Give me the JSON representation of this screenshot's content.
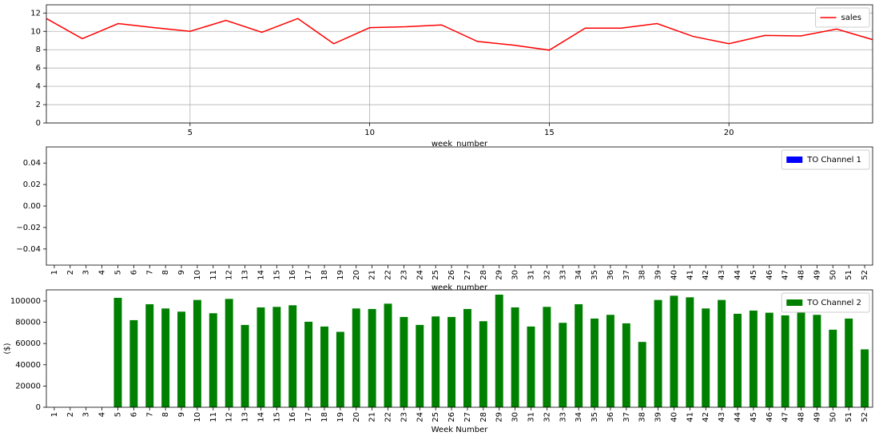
{
  "chart_data": [
    {
      "type": "line",
      "x_label": "week_number",
      "x": [
        1,
        2,
        3,
        4,
        5,
        6,
        7,
        8,
        9,
        10,
        11,
        12,
        13,
        14,
        15,
        16,
        17,
        18,
        19,
        20,
        21,
        22,
        23,
        24
      ],
      "series": [
        {
          "name": "sales",
          "color": "#ff0000",
          "values": [
            11.4,
            9.2,
            10.85,
            10.4,
            10.0,
            11.2,
            9.9,
            11.4,
            8.65,
            10.4,
            10.5,
            10.7,
            8.9,
            8.5,
            7.95,
            10.35,
            10.35,
            10.85,
            9.45,
            8.65,
            9.55,
            9.5,
            10.25,
            9.1
          ]
        }
      ],
      "xlim": [
        1,
        24
      ],
      "xticks": [
        5,
        10,
        15,
        20
      ],
      "ylim": [
        0,
        12.9
      ],
      "yticks": [
        0,
        2,
        4,
        6,
        8,
        10,
        12
      ],
      "grid": true,
      "legend": "upper-right"
    },
    {
      "type": "bar",
      "x_label": "week_number",
      "categories": [
        "1",
        "2",
        "3",
        "4",
        "5",
        "6",
        "7",
        "8",
        "9",
        "10",
        "11",
        "12",
        "13",
        "14",
        "15",
        "16",
        "17",
        "18",
        "19",
        "20",
        "21",
        "22",
        "23",
        "24",
        "25",
        "26",
        "27",
        "28",
        "29",
        "30",
        "31",
        "32",
        "33",
        "34",
        "35",
        "36",
        "37",
        "38",
        "39",
        "40",
        "41",
        "42",
        "43",
        "44",
        "45",
        "46",
        "47",
        "48",
        "49",
        "50",
        "51",
        "52"
      ],
      "series": [
        {
          "name": "TO Channel 1",
          "color": "#0000ff",
          "values": [
            0,
            0,
            0,
            0,
            0,
            0,
            0,
            0,
            0,
            0,
            0,
            0,
            0,
            0,
            0,
            0,
            0,
            0,
            0,
            0,
            0,
            0,
            0,
            0,
            0,
            0,
            0,
            0,
            0,
            0,
            0,
            0,
            0,
            0,
            0,
            0,
            0,
            0,
            0,
            0,
            0,
            0,
            0,
            0,
            0,
            0,
            0,
            0,
            0,
            0,
            0,
            0
          ]
        }
      ],
      "ylim": [
        -0.055,
        0.055
      ],
      "yticks": [
        {
          "value": -0.04,
          "label": "−0.04"
        },
        {
          "value": -0.02,
          "label": "−0.02"
        },
        {
          "value": 0,
          "label": "0.00"
        },
        {
          "value": 0.02,
          "label": "0.02"
        },
        {
          "value": 0.04,
          "label": "0.04"
        }
      ],
      "grid": false,
      "legend": "upper-right"
    },
    {
      "type": "bar",
      "x_label": "Week Number",
      "y_label": "($)",
      "categories": [
        "1",
        "2",
        "3",
        "4",
        "5",
        "6",
        "7",
        "8",
        "9",
        "10",
        "11",
        "12",
        "13",
        "14",
        "15",
        "16",
        "17",
        "18",
        "19",
        "20",
        "21",
        "22",
        "23",
        "24",
        "25",
        "26",
        "27",
        "28",
        "29",
        "30",
        "31",
        "32",
        "33",
        "34",
        "35",
        "36",
        "37",
        "38",
        "39",
        "40",
        "41",
        "42",
        "43",
        "44",
        "45",
        "46",
        "47",
        "48",
        "49",
        "50",
        "51",
        "52"
      ],
      "series": [
        {
          "name": "TO Channel 2",
          "color": "#008000",
          "values": [
            0,
            0,
            0,
            0,
            103000,
            82000,
            97000,
            93000,
            90000,
            101000,
            88500,
            102000,
            77500,
            94000,
            94500,
            96000,
            80500,
            76000,
            71000,
            93000,
            92500,
            97500,
            85000,
            77500,
            85500,
            85000,
            92500,
            81000,
            106000,
            94000,
            76000,
            94500,
            79500,
            97000,
            83500,
            87000,
            79000,
            61500,
            101000,
            105000,
            103500,
            93000,
            101000,
            88000,
            91000,
            89000,
            86500,
            93000,
            87000,
            73000,
            83500,
            54500
          ]
        }
      ],
      "ylim": [
        0,
        110500
      ],
      "yticks": [
        0,
        20000,
        40000,
        60000,
        80000,
        100000
      ],
      "grid": false,
      "legend": "upper-right"
    }
  ]
}
